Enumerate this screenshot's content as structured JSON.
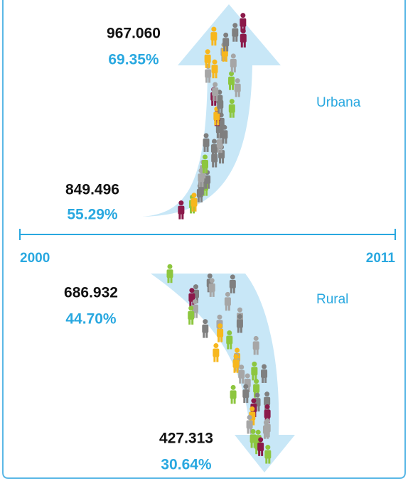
{
  "urban": {
    "label": "Urbana",
    "start": {
      "value": "849.496",
      "percent": "55.29%"
    },
    "end": {
      "value": "967.060",
      "percent": "69.35%"
    }
  },
  "rural": {
    "label": "Rural",
    "start": {
      "value": "686.932",
      "percent": "44.70%"
    },
    "end": {
      "value": "427.313",
      "percent": "30.64%"
    }
  },
  "timeline": {
    "start": "2000",
    "end": "2011"
  }
}
